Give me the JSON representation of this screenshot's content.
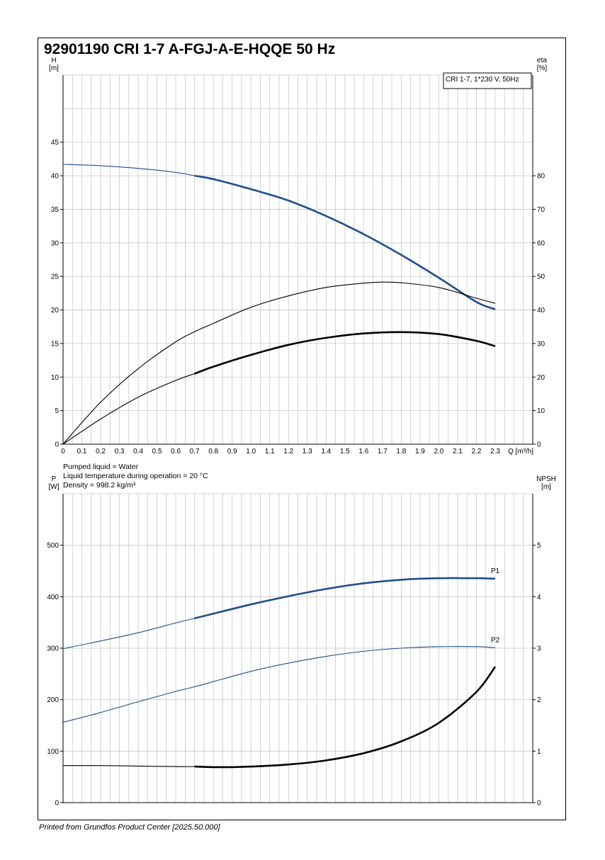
{
  "title": "92901190 CRI 1-7 A-FGJ-A-E-HQQE 50 Hz",
  "footer": "Printed from Grundfos Product Center [2025.50.000]",
  "conditions": {
    "liquid": "Pumped liquid = Water",
    "temperature": "Liquid temperature during operation = 20 °C",
    "density": "Density = 998.2 kg/m³"
  },
  "colors": {
    "blue": "#1f4e8c",
    "black": "#000000",
    "grid": "#c8c8c8"
  },
  "chart_data": [
    {
      "type": "line",
      "legend_box": "CRI 1-7, 1*230 V, 50Hz",
      "legend_placement": "top-right",
      "grid": true,
      "x_axis": {
        "label": "Q [m³/h]",
        "min": 0,
        "max": 2.5,
        "tick_labels": [
          "0",
          "0.1",
          "0.2",
          "0.3",
          "0.4",
          "0.5",
          "0.6",
          "0.7",
          "0.8",
          "0.9",
          "1.0",
          "1.1",
          "1.2",
          "1.3",
          "1.4",
          "1.5",
          "1.6",
          "1.7",
          "1.8",
          "1.9",
          "2.0",
          "2.1",
          "2.2",
          "2.3"
        ]
      },
      "y_left": {
        "label_top": "H",
        "label_bottom": "[m]",
        "min": 0,
        "max": 55,
        "tick_labels": [
          "0",
          "5",
          "10",
          "15",
          "20",
          "25",
          "30",
          "35",
          "40",
          "45"
        ]
      },
      "y_right": {
        "label_top": "eta",
        "label_bottom": "[%]",
        "min": 0,
        "max": 110,
        "tick_labels": [
          "0",
          "10",
          "20",
          "30",
          "40",
          "50",
          "60",
          "70",
          "80"
        ]
      },
      "series": [
        {
          "axis": "left",
          "color": "#1f4e8c",
          "x": [
            0,
            0.2,
            0.4,
            0.6,
            0.7,
            0.8,
            1.0,
            1.2,
            1.4,
            1.6,
            1.8,
            2.0,
            2.2,
            2.3
          ],
          "y": [
            41.7,
            41.5,
            41.1,
            40.5,
            40.0,
            39.5,
            38.0,
            36.3,
            34.0,
            31.3,
            28.2,
            24.8,
            21.2,
            20.1
          ],
          "bold_from": 0.7
        },
        {
          "axis": "right",
          "color": "#000000",
          "x": [
            0,
            0.2,
            0.4,
            0.6,
            0.7,
            0.8,
            1.0,
            1.2,
            1.4,
            1.6,
            1.7,
            1.8,
            2.0,
            2.2,
            2.3
          ],
          "y": [
            0,
            12.5,
            22.5,
            30.5,
            33.5,
            36.0,
            40.8,
            44.2,
            46.7,
            48.0,
            48.3,
            48.1,
            46.7,
            43.5,
            42.0
          ],
          "bold_from": 99
        },
        {
          "axis": "right",
          "color": "#000000",
          "x": [
            0,
            0.2,
            0.4,
            0.6,
            0.7,
            0.8,
            1.0,
            1.2,
            1.4,
            1.6,
            1.8,
            2.0,
            2.2,
            2.3
          ],
          "y": [
            0,
            7.5,
            14.0,
            19.0,
            21.0,
            23.1,
            26.6,
            29.6,
            31.7,
            33.0,
            33.4,
            32.8,
            30.8,
            29.2
          ],
          "bold_from": 0.7
        }
      ]
    },
    {
      "type": "line",
      "grid": true,
      "x_axis": {
        "min": 0,
        "max": 2.5
      },
      "y_left": {
        "label_top": "P",
        "label_bottom": "[W]",
        "min": 0,
        "max": 600,
        "tick_labels": [
          "0",
          "100",
          "200",
          "300",
          "400",
          "500"
        ]
      },
      "y_right": {
        "label_top": "NPSH",
        "label_bottom": "[m]",
        "min": 0,
        "max": 6,
        "tick_labels": [
          "0",
          "1",
          "2",
          "3",
          "4",
          "5"
        ]
      },
      "series": [
        {
          "name": "P1",
          "axis": "left",
          "color": "#1f4e8c",
          "x": [
            0,
            0.2,
            0.4,
            0.6,
            0.7,
            0.8,
            1.0,
            1.2,
            1.4,
            1.6,
            1.8,
            2.0,
            2.2,
            2.3
          ],
          "y": [
            299,
            314,
            330,
            349,
            358,
            367,
            385,
            401,
            415,
            426,
            433,
            436,
            436,
            435
          ],
          "bold_from": 0.7
        },
        {
          "name": "P2",
          "axis": "left",
          "color": "#1f4e8c",
          "x": [
            0,
            0.2,
            0.4,
            0.6,
            0.7,
            0.8,
            1.0,
            1.2,
            1.4,
            1.6,
            1.8,
            2.0,
            2.2,
            2.3
          ],
          "y": [
            156,
            175,
            196,
            216,
            225,
            235,
            255,
            271,
            284,
            294,
            300,
            303,
            303,
            301
          ],
          "bold_from": 99
        },
        {
          "axis": "right",
          "color": "#000000",
          "x": [
            0,
            0.2,
            0.4,
            0.6,
            0.7,
            0.8,
            0.9,
            1.0,
            1.2,
            1.4,
            1.6,
            1.8,
            2.0,
            2.2,
            2.3
          ],
          "y": [
            0.72,
            0.72,
            0.71,
            0.7,
            0.7,
            0.69,
            0.69,
            0.7,
            0.74,
            0.82,
            0.96,
            1.19,
            1.55,
            2.15,
            2.64
          ],
          "bold_from": 0.7
        }
      ]
    }
  ]
}
